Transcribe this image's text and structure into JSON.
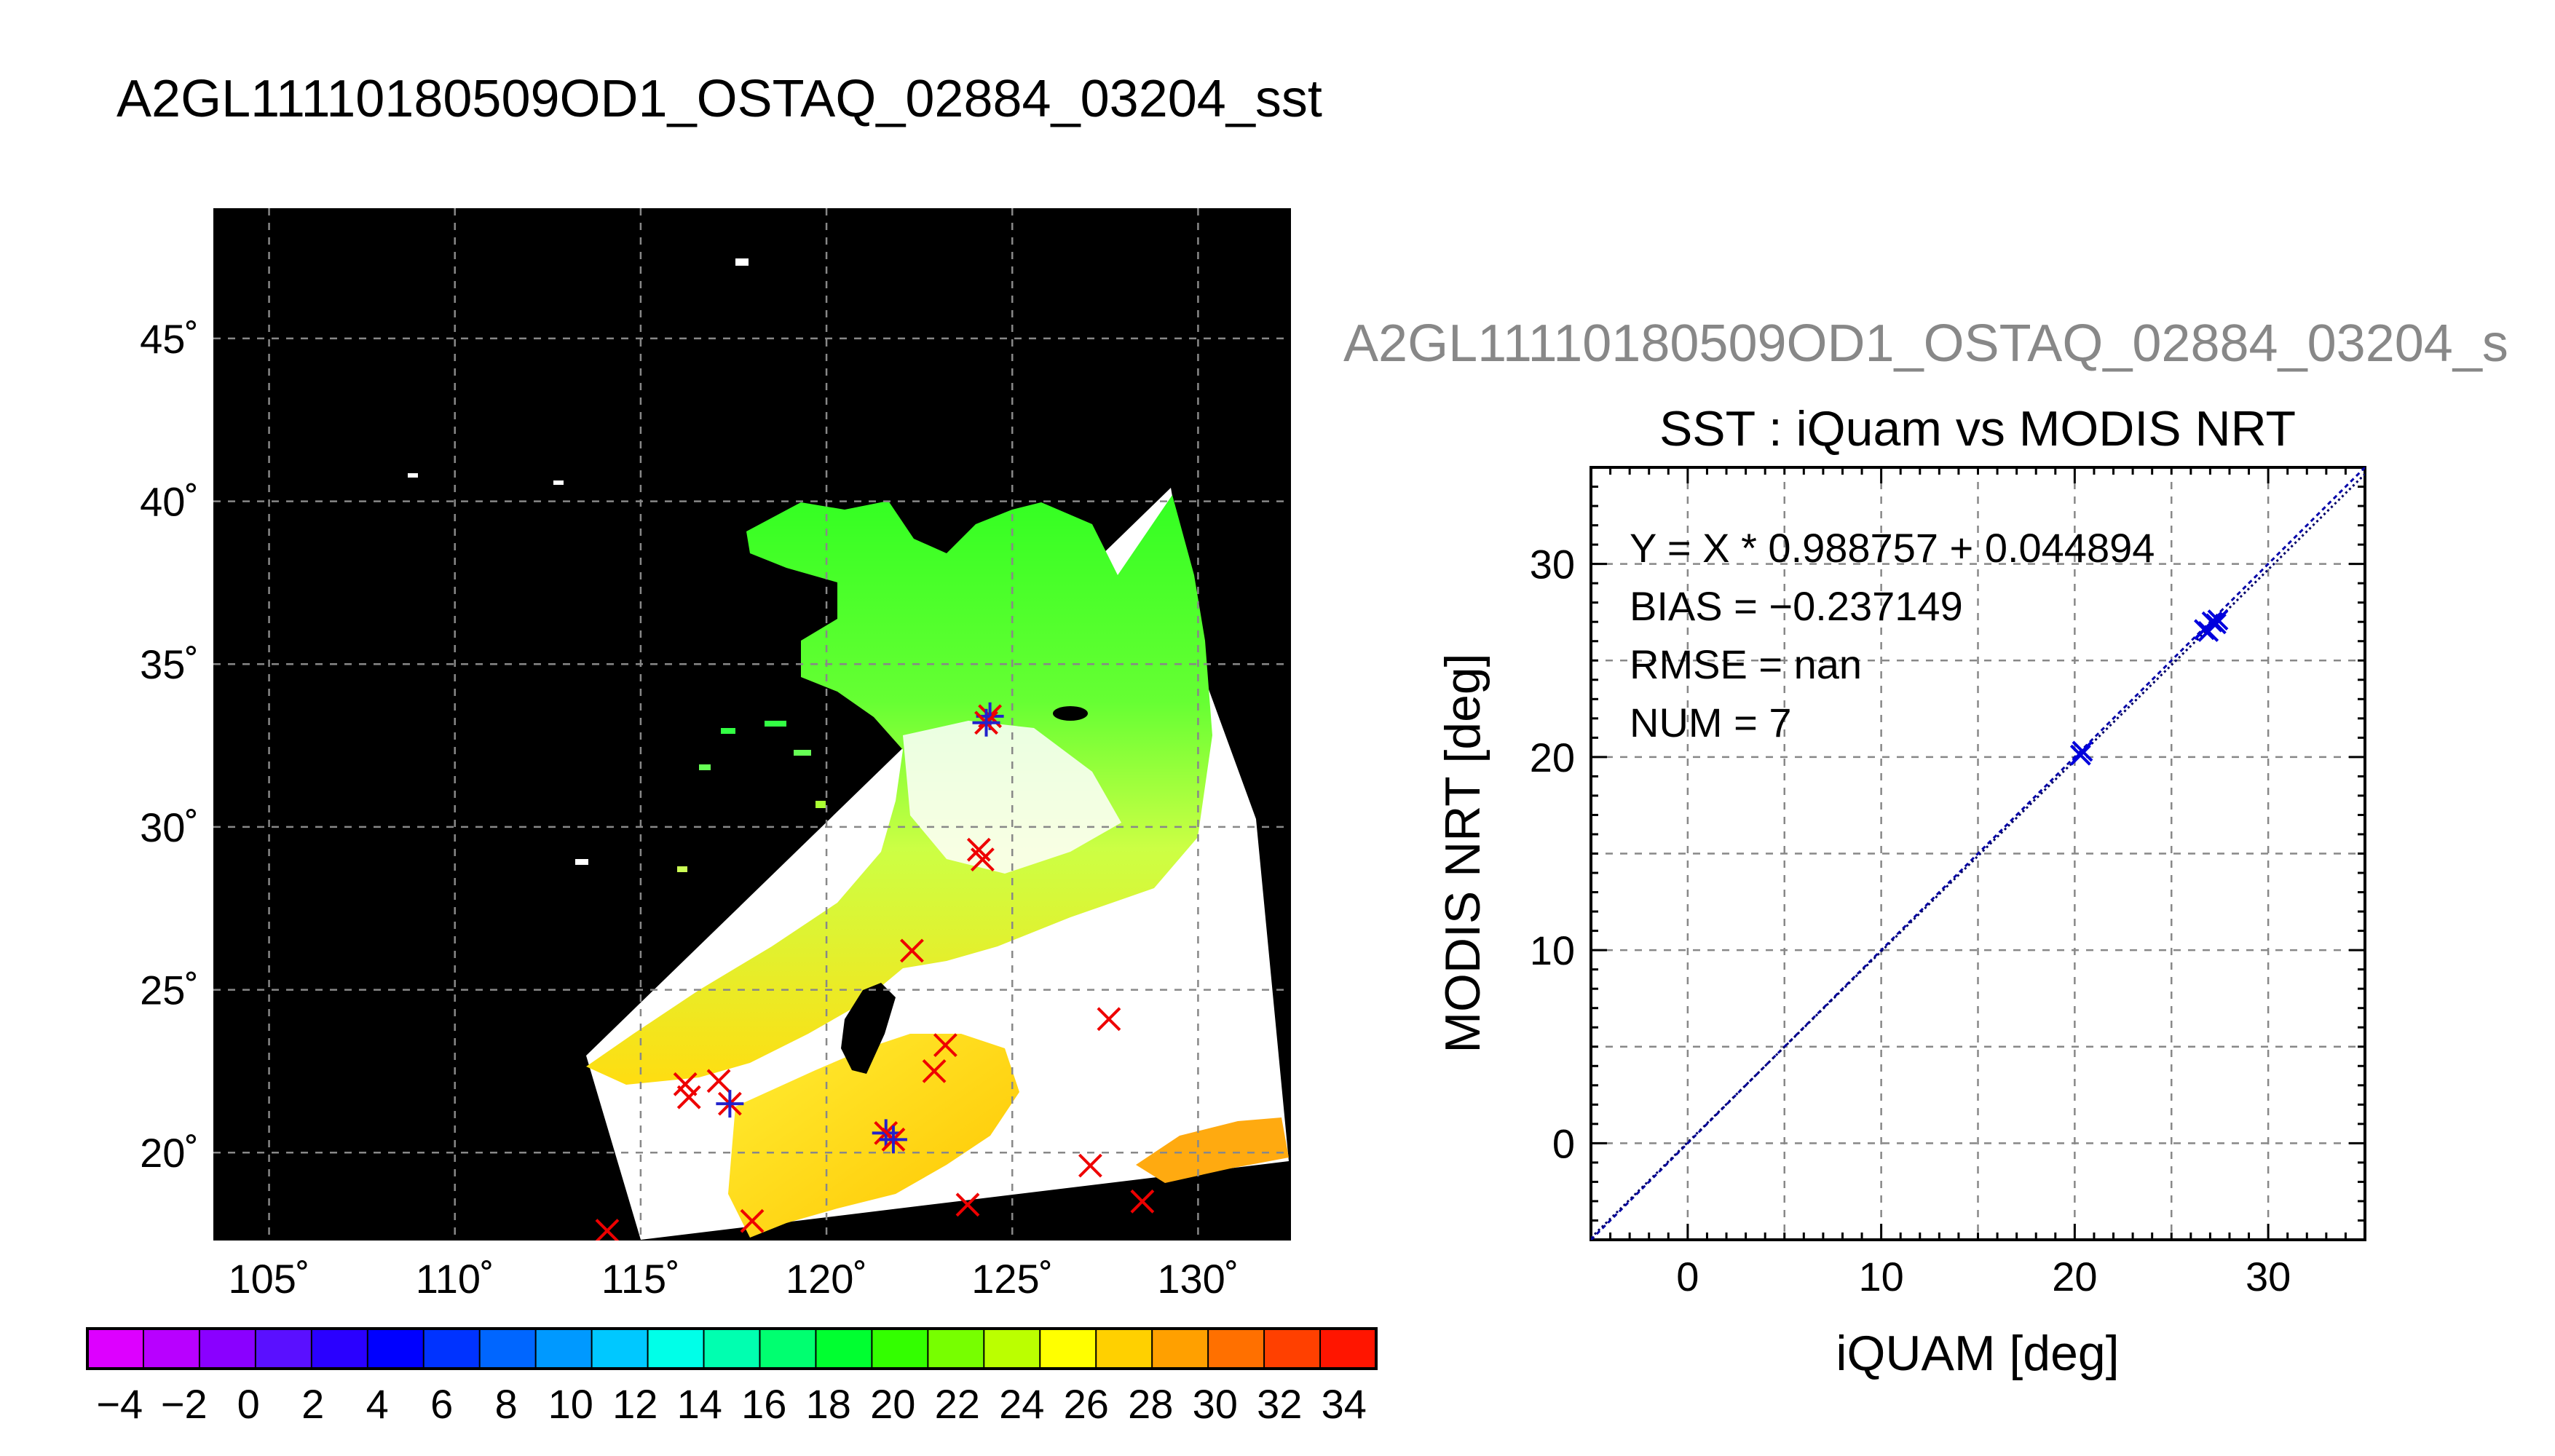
{
  "chart_data": [
    {
      "type": "map",
      "title": "A2GL11110180509OD1_OSTAQ_02884_03204_sst",
      "lon_range": [
        103.5,
        132.5
      ],
      "lat_range": [
        17.3,
        49.0
      ],
      "lon_ticks": [
        105,
        110,
        115,
        120,
        125,
        130
      ],
      "lat_ticks": [
        20,
        25,
        30,
        35,
        40,
        45
      ],
      "lon_tick_labels": [
        "105˚",
        "110˚",
        "115˚",
        "120˚",
        "125˚",
        "130˚"
      ],
      "lat_tick_labels": [
        "20˚",
        "25˚",
        "30˚",
        "35˚",
        "40˚",
        "45˚"
      ],
      "grid": true,
      "background_color": "#000000",
      "match_points": [
        {
          "lon": 124.4,
          "lat": 33.4,
          "matched": true
        },
        {
          "lon": 124.3,
          "lat": 33.2,
          "matched": true
        },
        {
          "lon": 124.1,
          "lat": 29.3,
          "matched": false
        },
        {
          "lon": 124.2,
          "lat": 29.0,
          "matched": false
        },
        {
          "lon": 122.3,
          "lat": 26.2,
          "matched": false
        },
        {
          "lon": 123.2,
          "lat": 23.3,
          "matched": false
        },
        {
          "lon": 122.9,
          "lat": 22.5,
          "matched": false
        },
        {
          "lon": 127.6,
          "lat": 24.1,
          "matched": false
        },
        {
          "lon": 116.2,
          "lat": 22.1,
          "matched": false
        },
        {
          "lon": 116.3,
          "lat": 21.7,
          "matched": false
        },
        {
          "lon": 117.1,
          "lat": 22.2,
          "matched": false
        },
        {
          "lon": 117.4,
          "lat": 21.5,
          "matched": true
        },
        {
          "lon": 121.6,
          "lat": 20.6,
          "matched": true
        },
        {
          "lon": 121.8,
          "lat": 20.4,
          "matched": true
        },
        {
          "lon": 127.1,
          "lat": 19.6,
          "matched": false
        },
        {
          "lon": 128.5,
          "lat": 18.5,
          "matched": false
        },
        {
          "lon": 123.8,
          "lat": 18.4,
          "matched": false
        },
        {
          "lon": 118.0,
          "lat": 17.9,
          "matched": false
        },
        {
          "lon": 114.1,
          "lat": 17.6,
          "matched": false
        }
      ],
      "colorbar": {
        "min": -5,
        "max": 35,
        "step": 2,
        "tick_labels": [
          "−4",
          "−2",
          "0",
          "2",
          "4",
          "6",
          "8",
          "10",
          "12",
          "14",
          "16",
          "18",
          "20",
          "22",
          "24",
          "26",
          "28",
          "30",
          "32",
          "34"
        ],
        "colors": [
          "#dd00ff",
          "#b800ff",
          "#8a00ff",
          "#5a10ff",
          "#2a00ff",
          "#0000ff",
          "#0033ff",
          "#0066ff",
          "#0099ff",
          "#00c8ff",
          "#00ffe8",
          "#00ffb0",
          "#00ff70",
          "#00ff30",
          "#33ff00",
          "#77ff00",
          "#bbff00",
          "#ffff00",
          "#ffd000",
          "#ffa000",
          "#ff7000",
          "#ff4000",
          "#ff1500"
        ]
      }
    },
    {
      "type": "scatter",
      "figure_title": "A2GL11110180509OD1_OSTAQ_02884_03204_s",
      "title": "SST : iQuam vs MODIS NRT",
      "xlabel": "iQUAM [deg]",
      "ylabel": "MODIS NRT [deg]",
      "xlim": [
        -5,
        35
      ],
      "ylim": [
        -5,
        35
      ],
      "xticks": [
        0,
        10,
        20,
        30
      ],
      "yticks": [
        0,
        10,
        20,
        30
      ],
      "grid": true,
      "points": [
        {
          "x": 20.3,
          "y": 20.1
        },
        {
          "x": 20.4,
          "y": 20.3
        },
        {
          "x": 26.7,
          "y": 26.6
        },
        {
          "x": 26.9,
          "y": 26.5
        },
        {
          "x": 27.1,
          "y": 27.0
        },
        {
          "x": 27.3,
          "y": 26.9
        },
        {
          "x": 27.4,
          "y": 27.1
        }
      ],
      "fit": {
        "slope": 0.988757,
        "intercept": 0.044894
      },
      "annotations": [
        "Y = X * 0.988757 + 0.044894",
        "BIAS = −0.237149",
        "RMSE = nan",
        "NUM = 7"
      ],
      "colors": {
        "points": "#0000dd",
        "identity_line": "#0000aa",
        "fit_line": "#000066"
      }
    }
  ]
}
